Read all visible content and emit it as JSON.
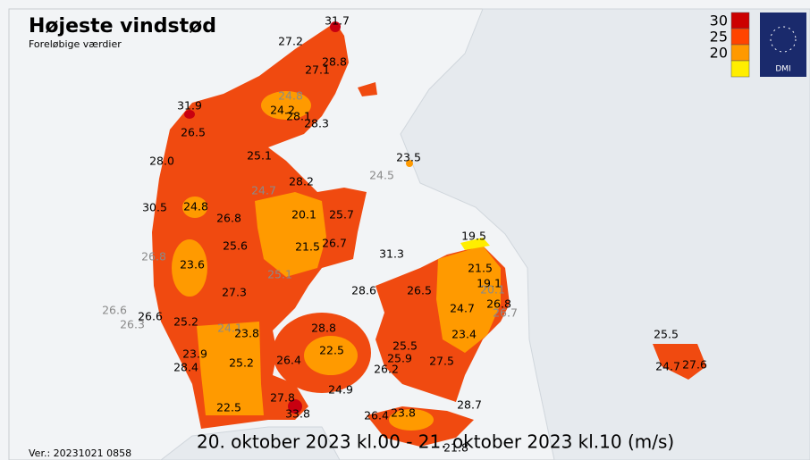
{
  "header": {
    "title": "Højeste vindstød",
    "subtitle": "Foreløbige værdier"
  },
  "legend": {
    "items": [
      {
        "value": 30,
        "color": "#cc0000"
      },
      {
        "value": 25,
        "color": "#ff4400"
      },
      {
        "value": 20,
        "color": "#ff9900"
      }
    ],
    "lowest_color": "#ffee00"
  },
  "logo": "DMI",
  "stations": [
    "31.7",
    "27.2",
    "28.8",
    "27.1",
    "24.8",
    "24.2",
    "28.1",
    "28.3",
    "31.9",
    "26.5",
    "25.1",
    "28.0",
    "23.5",
    "24.5",
    "28.2",
    "24.7",
    "24.8",
    "30.5",
    "20.1",
    "25.7",
    "26.8",
    "19.5",
    "26.7",
    "21.5",
    "25.6",
    "26.8",
    "31.3",
    "23.6",
    "21.5",
    "25.1",
    "19.1",
    "20.1",
    "28.6",
    "26.5",
    "27.3",
    "26.8",
    "24.7",
    "26.7",
    "26.6",
    "26.3",
    "26.6",
    "25.2",
    "24.1",
    "23.8",
    "28.8",
    "23.4",
    "25.5",
    "22.5",
    "25.5",
    "23.9",
    "25.9",
    "28.4",
    "25.2",
    "26.4",
    "27.5",
    "26.2",
    "24.7",
    "27.6",
    "24.9",
    "27.8",
    "28.7",
    "22.5",
    "33.8",
    "26.4",
    "23.8",
    "21.8"
  ],
  "footer": {
    "version": "Ver.: 20231021 0858",
    "period": "20. oktober 2023 kl.00 - 21. oktober 2023 kl.10 (m/s)"
  }
}
